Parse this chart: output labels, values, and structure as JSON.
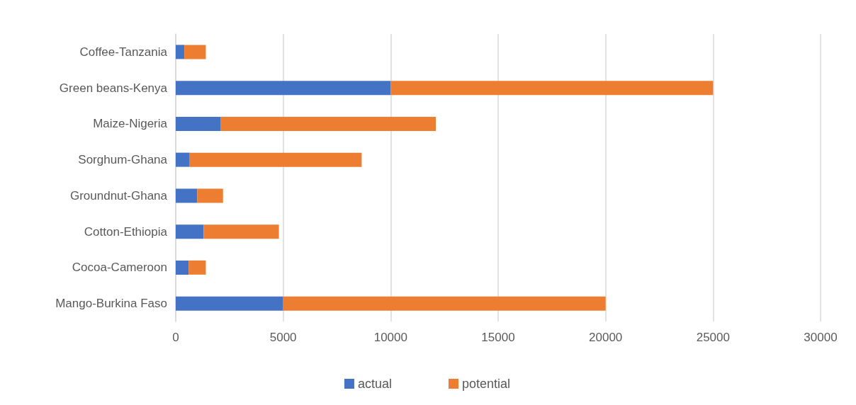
{
  "chart_data": {
    "type": "bar",
    "orientation": "horizontal",
    "stacked": true,
    "categories": [
      "Coffee-Tanzania",
      "Green beans-Kenya",
      "Maize-Nigeria",
      "Sorghum-Ghana",
      "Groundnut-Ghana",
      "Cotton-Ethiopia",
      "Cocoa-Cameroon",
      "Mango-Burkina Faso"
    ],
    "series": [
      {
        "name": "actual",
        "color": "#4472c4",
        "values": [
          400,
          10000,
          2100,
          650,
          1000,
          1300,
          600,
          5000
        ]
      },
      {
        "name": "potential",
        "color": "#ed7d31",
        "values": [
          1000,
          15000,
          10000,
          8000,
          1200,
          3500,
          800,
          15000
        ]
      }
    ],
    "xlim": [
      0,
      30000
    ],
    "xticks": [
      0,
      5000,
      10000,
      15000,
      20000,
      25000,
      30000
    ],
    "grid": "x",
    "legend": "bottom"
  }
}
